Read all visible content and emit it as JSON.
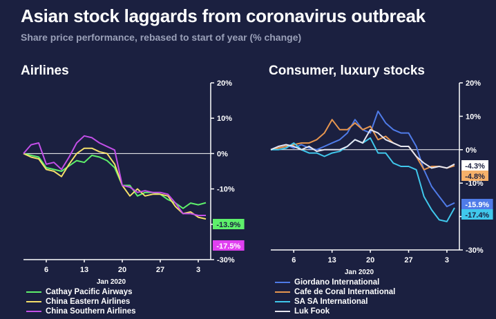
{
  "header": {
    "title": "Asian stock laggards from coronavirus outbreak",
    "subtitle": "Share price performance, rebased to start of year (% change)"
  },
  "chart_data": [
    {
      "type": "line",
      "title": "Airlines",
      "xlabel": "Jan 2020",
      "ylabel": "",
      "ylim": [
        -30,
        20
      ],
      "yticks": [
        20,
        10,
        0,
        -10,
        -20,
        -30
      ],
      "ytick_labels": [
        "20%",
        "10%",
        "0%",
        "-10%",
        "-20%",
        "-30%"
      ],
      "xlim": [
        1,
        3
      ],
      "xticks": [
        6,
        13,
        20,
        27,
        3
      ],
      "x_dates": [
        "Jan 1",
        "Jan 2",
        "Jan 3",
        "Jan 6",
        "Jan 7",
        "Jan 8",
        "Jan 9",
        "Jan 10",
        "Jan 13",
        "Jan 14",
        "Jan 15",
        "Jan 16",
        "Jan 17",
        "Jan 20",
        "Jan 21",
        "Jan 22",
        "Jan 23",
        "Jan 24",
        "Jan 27",
        "Jan 28",
        "Jan 29",
        "Jan 30",
        "Jan 31",
        "Feb 3",
        "Feb 4"
      ],
      "x": [
        1,
        2,
        3,
        4,
        5,
        6,
        7,
        8,
        9,
        10,
        11,
        12,
        13,
        14,
        15,
        16,
        17,
        18,
        19,
        20,
        21,
        22,
        23,
        24,
        25
      ],
      "series": [
        {
          "name": "Cathay Pacific Airways",
          "color": "#5ef06b",
          "values": [
            0,
            -0.5,
            -1,
            -4,
            -4.5,
            -5,
            -3.5,
            -2,
            -2.5,
            -0.5,
            -1,
            -2,
            -4,
            -9,
            -9,
            -12,
            -11,
            -11,
            -11.5,
            -13,
            -14,
            -15.5,
            -14,
            -14.5,
            -13.9
          ]
        },
        {
          "name": "China Eastern Airlines",
          "color": "#f5e06a",
          "values": [
            0,
            -1,
            -1.5,
            -4.5,
            -5,
            -6.5,
            -3,
            0,
            1.5,
            1.5,
            0.5,
            0,
            -3,
            -9,
            -12,
            -10,
            -12,
            -11.5,
            -11.5,
            -12,
            -15,
            -17,
            -16.5,
            -18,
            -18.5
          ]
        },
        {
          "name": "China Southern Airlines",
          "color": "#c34fe8",
          "values": [
            0,
            2.5,
            3,
            -3,
            -2.5,
            -4.5,
            -1,
            3,
            5,
            4.5,
            3,
            2,
            1,
            -9,
            -9.5,
            -11,
            -10.5,
            -11,
            -11,
            -11.5,
            -14,
            -17,
            -17,
            -17.5,
            -17.5
          ]
        }
      ],
      "end_labels": [
        "-13.9%",
        "-17.5%"
      ],
      "legend": "bottom-left"
    },
    {
      "type": "line",
      "title": "Consumer, luxury stocks",
      "xlabel": "Jan 2020",
      "ylabel": "",
      "ylim": [
        -30,
        20
      ],
      "yticks": [
        20,
        10,
        0,
        -10,
        -20,
        -30
      ],
      "ytick_labels": [
        "20%",
        "10%",
        "0%",
        "-10%",
        "-20%",
        "-30%"
      ],
      "xlim": [
        1,
        3
      ],
      "xticks": [
        6,
        13,
        20,
        27,
        3
      ],
      "x_dates": [
        "Jan 1",
        "Jan 2",
        "Jan 3",
        "Jan 6",
        "Jan 7",
        "Jan 8",
        "Jan 9",
        "Jan 10",
        "Jan 13",
        "Jan 14",
        "Jan 15",
        "Jan 16",
        "Jan 17",
        "Jan 20",
        "Jan 21",
        "Jan 22",
        "Jan 23",
        "Jan 24",
        "Jan 27",
        "Jan 28",
        "Jan 29",
        "Jan 30",
        "Jan 31",
        "Feb 3",
        "Feb 4"
      ],
      "x": [
        1,
        2,
        3,
        4,
        5,
        6,
        7,
        8,
        9,
        10,
        11,
        12,
        13,
        14,
        15,
        16,
        17,
        18,
        19,
        20,
        21,
        22,
        23,
        24,
        25
      ],
      "series": [
        {
          "name": "Giordano International",
          "color": "#4f7be8",
          "values": [
            0,
            1,
            1.5,
            0.5,
            1.5,
            0.5,
            0,
            1,
            2,
            3,
            5,
            9,
            6,
            5,
            11.5,
            8,
            6,
            5,
            5,
            1,
            -6,
            -11,
            -14,
            -17,
            -15.9
          ]
        },
        {
          "name": "Cafe de Coral International",
          "color": "#e8964f",
          "values": [
            0,
            0.5,
            1,
            1.5,
            2,
            2,
            3,
            5,
            9,
            6,
            6,
            8,
            6,
            7,
            3,
            4,
            2,
            1,
            1,
            -2,
            -6,
            -5,
            -5,
            -5.5,
            -4.8
          ]
        },
        {
          "name": "SA SA International",
          "color": "#40c8ec",
          "values": [
            0,
            0,
            0.5,
            2,
            0,
            -1,
            -1,
            -2,
            -1,
            -0.5,
            1,
            3,
            2,
            3.5,
            -1,
            -1,
            -4,
            -5,
            -5,
            -6,
            -14,
            -18,
            -21,
            -21.5,
            -17.4
          ]
        },
        {
          "name": "Luk Fook",
          "color": "#e6e6f0",
          "values": [
            0,
            1,
            1.5,
            1,
            0,
            1,
            -0.5,
            0,
            0,
            0,
            1,
            3,
            2,
            6,
            5,
            3,
            2,
            1,
            1,
            -2,
            -4,
            -5.5,
            -5,
            -5.5,
            -4.3
          ]
        }
      ],
      "end_labels": [
        "-4.3%",
        "-4.8%",
        "-15.9%",
        "-17.4%"
      ],
      "legend": "bottom-left"
    }
  ],
  "legend_left": [
    {
      "label": "Cathay Pacific Airways",
      "color": "#5ef06b"
    },
    {
      "label": "China Eastern Airlines",
      "color": "#f5e06a"
    },
    {
      "label": "China Southern Airlines",
      "color": "#c34fe8"
    }
  ],
  "legend_right": [
    {
      "label": "Giordano International",
      "color": "#4f7be8"
    },
    {
      "label": "Cafe de Coral International",
      "color": "#e8964f"
    },
    {
      "label": "SA SA International",
      "color": "#40c8ec"
    },
    {
      "label": "Luk Fook",
      "color": "#e6e6f0"
    }
  ]
}
